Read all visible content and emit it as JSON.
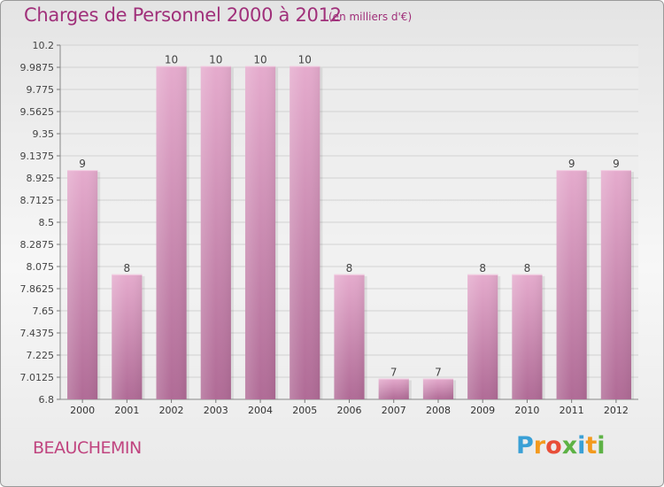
{
  "title": "Charges de Personnel 2000 à 2012",
  "subtitle": "(en milliers d'€)",
  "commune": "BEAUCHEMIN",
  "logo": {
    "letters": [
      "P",
      "r",
      "o",
      "x",
      "i",
      "t",
      "i"
    ],
    "colors": [
      "#3aa0d6",
      "#f39a1e",
      "#e84e38",
      "#5db245",
      "#3aa0d6",
      "#f39a1e",
      "#5db245"
    ]
  },
  "colors": {
    "bar": "#c77aa9",
    "bar_light": "#e3a8cb",
    "title": "#a0307a"
  },
  "chart_data": {
    "type": "bar",
    "categories": [
      "2000",
      "2001",
      "2002",
      "2003",
      "2004",
      "2005",
      "2006",
      "2007",
      "2008",
      "2009",
      "2010",
      "2011",
      "2012"
    ],
    "values": [
      9,
      8,
      10,
      10,
      10,
      10,
      8,
      7,
      7,
      8,
      8,
      9,
      9
    ],
    "data_labels": [
      "9",
      "8",
      "10",
      "10",
      "10",
      "10",
      "8",
      "7",
      "7",
      "8",
      "8",
      "9",
      "9"
    ],
    "yticks": [
      6.8,
      7.0125,
      7.225,
      7.4375,
      7.65,
      7.8625,
      8.075,
      8.2875,
      8.5,
      8.7125,
      8.925,
      9.1375,
      9.35,
      9.5625,
      9.775,
      9.9875,
      10.2
    ],
    "ytick_labels": [
      "6.8",
      "7.0125",
      "7.225",
      "7.4375",
      "7.65",
      "7.8625",
      "8.075",
      "8.2875",
      "8.5",
      "8.7125",
      "8.925",
      "9.1375",
      "9.35",
      "9.5625",
      "9.775",
      "9.9875",
      "10.2"
    ],
    "ylim": [
      6.8,
      10.2
    ],
    "grid": true,
    "title": "Charges de Personnel 2000 à 2012",
    "xlabel": "",
    "ylabel": ""
  }
}
